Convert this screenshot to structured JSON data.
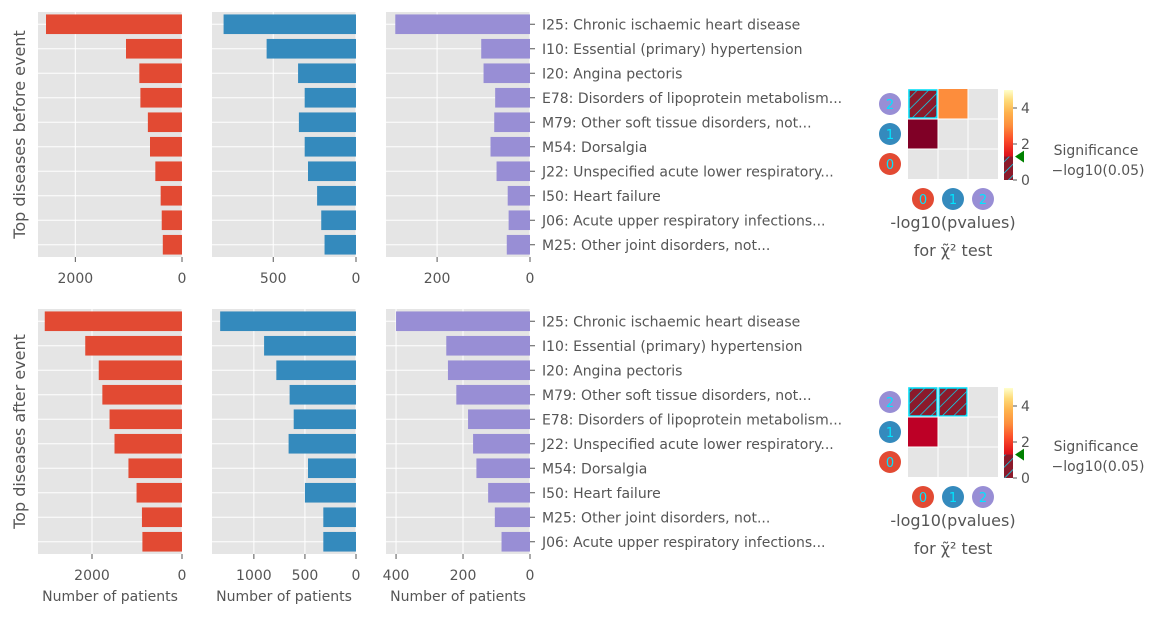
{
  "colors": {
    "panel_bg": "#E5E5E5",
    "grid": "#FFFFFF",
    "tick_text": "#555555",
    "label_text": "#555555",
    "cluster_0": "#E24A33",
    "cluster_1": "#348ABD",
    "cluster_2": "#988ED5",
    "hatch_face": "#8B1A2B",
    "hatch_line": "#00E5FF",
    "marker": "#008000"
  },
  "chart_data": [
    {
      "type": "bar",
      "orientation": "horizontal",
      "ylabel": "Top diseases before event",
      "xlabel": "",
      "categories": [
        "I25: Chronic ischaemic heart disease",
        "I10: Essential (primary) hypertension",
        "I20: Angina pectoris",
        "E78: Disorders of lipoprotein metabolism...",
        "M79: Other soft tissue disorders, not...",
        "M54: Dorsalgia",
        "J22: Unspecified acute lower respiratory...",
        "I50: Heart failure",
        "J06: Acute upper respiratory infections...",
        "M25: Other joint disorders, not..."
      ],
      "series": [
        {
          "color": "#E24A33",
          "xlim": [
            2700,
            0
          ],
          "xticks": [
            2000,
            0
          ],
          "values": [
            2550,
            1050,
            800,
            780,
            640,
            600,
            500,
            400,
            380,
            360
          ]
        },
        {
          "color": "#348ABD",
          "xlim": [
            870,
            0
          ],
          "xticks": [
            500,
            0
          ],
          "values": [
            800,
            540,
            350,
            310,
            345,
            310,
            290,
            235,
            210,
            190
          ]
        },
        {
          "color": "#988ED5",
          "xlim": [
            310,
            0
          ],
          "xticks": [
            200,
            0
          ],
          "values": [
            290,
            105,
            100,
            75,
            77,
            85,
            72,
            48,
            46,
            50
          ]
        }
      ]
    },
    {
      "type": "bar",
      "orientation": "horizontal",
      "ylabel": "Top diseases after event",
      "xlabel": "Number of patients",
      "categories": [
        "I25: Chronic ischaemic heart disease",
        "I10: Essential (primary) hypertension",
        "I20: Angina pectoris",
        "M79: Other soft tissue disorders, not...",
        "E78: Disorders of lipoprotein metabolism...",
        "J22: Unspecified acute lower respiratory...",
        "M54: Dorsalgia",
        "I50: Heart failure",
        "M25: Other joint disorders, not...",
        "J06: Acute upper respiratory infections..."
      ],
      "series": [
        {
          "color": "#E24A33",
          "xlim": [
            3200,
            0
          ],
          "xticks": [
            2000,
            0
          ],
          "values": [
            3050,
            2150,
            1850,
            1770,
            1610,
            1500,
            1190,
            1010,
            890,
            880
          ]
        },
        {
          "color": "#348ABD",
          "xlim": [
            1410,
            0
          ],
          "xticks": [
            1000,
            500,
            0
          ],
          "values": [
            1330,
            900,
            780,
            650,
            610,
            660,
            470,
            500,
            320,
            320
          ]
        },
        {
          "color": "#988ED5",
          "xlim": [
            430,
            0
          ],
          "xticks": [
            400,
            200,
            0
          ],
          "values": [
            400,
            250,
            245,
            220,
            185,
            170,
            160,
            125,
            105,
            85
          ]
        }
      ]
    },
    {
      "type": "heatmap",
      "xlabel": "-log10(pvalues)",
      "xlabel_line2": "for χ̃² test",
      "row_labels": [
        "2",
        "1",
        "0"
      ],
      "col_labels": [
        "0",
        "1",
        "2"
      ],
      "cells": [
        [
          {
            "hatched": true
          },
          {
            "value": 3.2
          },
          {
            "value": null
          }
        ],
        [
          {
            "value": 0.2
          },
          {
            "value": null
          },
          {
            "value": null
          }
        ],
        [
          {
            "value": null
          },
          {
            "value": null
          },
          {
            "value": null
          }
        ]
      ],
      "colorbar": {
        "min": 0,
        "max": 5,
        "ticks": [
          0,
          2,
          4
        ],
        "threshold": 1.301
      },
      "legend_title": "Significance",
      "legend_subtitle": "−log10(0.05)"
    },
    {
      "type": "heatmap",
      "xlabel": "-log10(pvalues)",
      "xlabel_line2": "for χ̃² test",
      "row_labels": [
        "2",
        "1",
        "0"
      ],
      "col_labels": [
        "0",
        "1",
        "2"
      ],
      "cells": [
        [
          {
            "hatched": true
          },
          {
            "hatched": true
          },
          {
            "value": null
          }
        ],
        [
          {
            "value": 0.8
          },
          {
            "value": null
          },
          {
            "value": null
          }
        ],
        [
          {
            "value": null
          },
          {
            "value": null
          },
          {
            "value": null
          }
        ]
      ],
      "colorbar": {
        "min": 0,
        "max": 5,
        "ticks": [
          0,
          2,
          4
        ],
        "threshold": 1.301
      },
      "legend_title": "Significance",
      "legend_subtitle": "−log10(0.05)"
    }
  ]
}
